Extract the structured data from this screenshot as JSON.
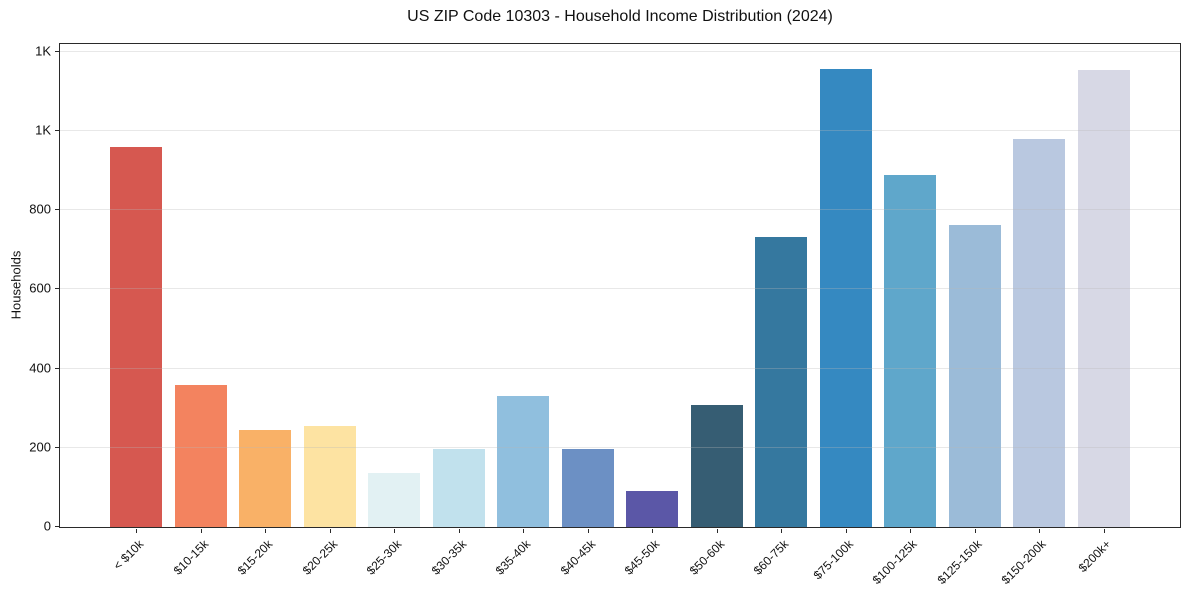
{
  "title": "US ZIP Code 10303 - Household Income Distribution (2024)",
  "colors": {
    "background": "#ffffff",
    "spine": "#2a2a2a",
    "grid": "#e6e6e6",
    "text": "#111111"
  },
  "chart_data": {
    "type": "bar",
    "title": "US ZIP Code 10303 - Household Income Distribution (2024)",
    "xlabel": "",
    "ylabel": "Households",
    "ylim": [
      0,
      1220
    ],
    "grid": true,
    "legend_position": "none",
    "categories": [
      "< $10k",
      "$10-15k",
      "$15-20k",
      "$20-25k",
      "$25-30k",
      "$30-35k",
      "$35-40k",
      "$40-45k",
      "$45-50k",
      "$50-60k",
      "$60-75k",
      "$75-100k",
      "$100-125k",
      "$125-150k",
      "$150-200k",
      "$200k+"
    ],
    "values": [
      960,
      358,
      246,
      256,
      136,
      196,
      330,
      197,
      90,
      308,
      732,
      1156,
      889,
      762,
      979,
      1154
    ],
    "bar_colors": [
      "#d65850",
      "#f3835f",
      "#f9b167",
      "#fde3a2",
      "#e2f1f3",
      "#c1e1ed",
      "#90bfde",
      "#6c90c4",
      "#5b57a7",
      "#365d73",
      "#35789f",
      "#3589c1",
      "#5fa7cb",
      "#9bbbd8",
      "#b9c8e0",
      "#d7d8e5"
    ],
    "y_ticks": {
      "values": [
        0,
        200,
        400,
        600,
        800,
        1000,
        1200
      ],
      "labels": [
        "0",
        "200",
        "400",
        "600",
        "800",
        "1K",
        "1K"
      ]
    }
  }
}
